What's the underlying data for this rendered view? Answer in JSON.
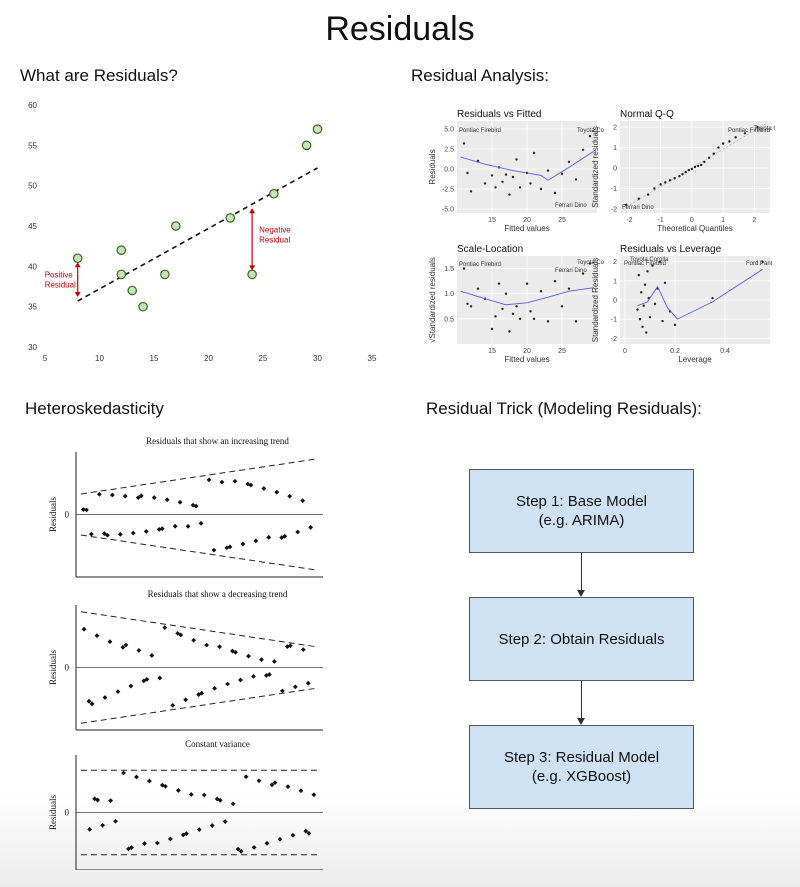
{
  "title": "Residuals",
  "sections": {
    "what_are_residuals": "What are Residuals?",
    "residual_analysis": "Residual Analysis:",
    "heteroskedasticity": "Heteroskedasticity",
    "residual_trick": "Residual Trick (Modeling Residuals):"
  },
  "flowchart": {
    "step1": {
      "line1": "Step 1: Base Model",
      "line2": "(e.g. ARIMA)"
    },
    "step2": {
      "line1": "Step 2: Obtain Residuals"
    },
    "step3": {
      "line1": "Step 3: Residual Model",
      "line2": "(e.g. XGBoost)"
    }
  },
  "chart_data": [
    {
      "id": "residual-scatter",
      "type": "scatter",
      "title": "",
      "xlim": [
        5,
        35
      ],
      "ylim": [
        30,
        60
      ],
      "xticks": [
        5,
        10,
        15,
        20,
        25,
        30,
        35
      ],
      "yticks": [
        30,
        35,
        40,
        45,
        50,
        55,
        60
      ],
      "points": [
        {
          "x": 8,
          "y": 41
        },
        {
          "x": 12,
          "y": 42
        },
        {
          "x": 12,
          "y": 39
        },
        {
          "x": 13,
          "y": 37
        },
        {
          "x": 14,
          "y": 35
        },
        {
          "x": 16,
          "y": 39
        },
        {
          "x": 17,
          "y": 45
        },
        {
          "x": 22,
          "y": 46
        },
        {
          "x": 24,
          "y": 39
        },
        {
          "x": 26,
          "y": 49
        },
        {
          "x": 29,
          "y": 55
        },
        {
          "x": 30,
          "y": 57
        }
      ],
      "fit_line": {
        "x": [
          8,
          30
        ],
        "y": [
          35.7,
          52.2
        ]
      },
      "annotations": [
        {
          "label_line1": "Positive",
          "label_line2": "Residual",
          "x": 8,
          "from_y": 41,
          "to_y": 35.7
        },
        {
          "label_line1": "Negative",
          "label_line2": "Residual",
          "x": 24,
          "from_y": 39,
          "to_y": 47.7
        }
      ],
      "annotation_color": "#cc0000",
      "point_fill": "#c9e4b4",
      "point_stroke": "#2e6b1f"
    },
    {
      "id": "residuals-vs-fitted",
      "type": "scatter",
      "title": "Residuals vs Fitted",
      "xlabel": "Fitted values",
      "ylabel": "Residuals",
      "xlim": [
        10,
        30
      ],
      "ylim": [
        -5.5,
        6
      ],
      "xticks": [
        15,
        20,
        25
      ],
      "yticks": [
        -5.0,
        -2.5,
        0.0,
        2.5,
        5.0
      ],
      "labels": [
        "Pontiac Firebird",
        "Toyota Co",
        "Ferrari Dino"
      ],
      "points": [
        {
          "x": 11,
          "y": 3.2
        },
        {
          "x": 11.5,
          "y": -0.5
        },
        {
          "x": 12,
          "y": -2.8
        },
        {
          "x": 13,
          "y": 1.0
        },
        {
          "x": 14,
          "y": -1.8
        },
        {
          "x": 15,
          "y": -0.8
        },
        {
          "x": 15.5,
          "y": -2.3
        },
        {
          "x": 16,
          "y": 0.2
        },
        {
          "x": 16.5,
          "y": -1.6
        },
        {
          "x": 17,
          "y": -0.7
        },
        {
          "x": 17.5,
          "y": -3.2
        },
        {
          "x": 18,
          "y": -1.0
        },
        {
          "x": 18.5,
          "y": 1.2
        },
        {
          "x": 19,
          "y": -2.3
        },
        {
          "x": 20,
          "y": -0.5
        },
        {
          "x": 20.5,
          "y": -1.8
        },
        {
          "x": 21,
          "y": 2.0
        },
        {
          "x": 22,
          "y": -2.5
        },
        {
          "x": 23,
          "y": -0.2
        },
        {
          "x": 24,
          "y": -3.0
        },
        {
          "x": 25,
          "y": -0.6
        },
        {
          "x": 26,
          "y": 0.9
        },
        {
          "x": 27,
          "y": -1.3
        },
        {
          "x": 28,
          "y": 2.4
        },
        {
          "x": 29,
          "y": 4.1
        }
      ],
      "smooth": {
        "x": [
          10.5,
          14,
          18,
          22,
          23,
          26,
          29.5
        ],
        "y": [
          1.5,
          0.6,
          -0.2,
          -0.8,
          -1.4,
          0.2,
          2.2
        ]
      }
    },
    {
      "id": "normal-qq",
      "type": "scatter",
      "title": "Normal Q-Q",
      "xlabel": "Theoretical Quantiles",
      "ylabel": "Standardized residuals",
      "xlim": [
        -2.3,
        2.5
      ],
      "ylim": [
        -2.2,
        2.3
      ],
      "xticks": [
        -2,
        -1,
        0,
        1,
        2
      ],
      "yticks": [
        -2,
        -1,
        0,
        1,
        2
      ],
      "labels": [
        "Pontiac Firebird",
        "Toyota Co",
        "Ferrari Dino"
      ],
      "points": [
        {
          "x": -2.1,
          "y": -1.8
        },
        {
          "x": -1.7,
          "y": -1.5
        },
        {
          "x": -1.4,
          "y": -1.3
        },
        {
          "x": -1.2,
          "y": -1.0
        },
        {
          "x": -1.0,
          "y": -0.8
        },
        {
          "x": -0.85,
          "y": -0.7
        },
        {
          "x": -0.7,
          "y": -0.6
        },
        {
          "x": -0.55,
          "y": -0.5
        },
        {
          "x": -0.4,
          "y": -0.4
        },
        {
          "x": -0.3,
          "y": -0.3
        },
        {
          "x": -0.2,
          "y": -0.2
        },
        {
          "x": -0.1,
          "y": -0.1
        },
        {
          "x": 0.0,
          "y": -0.05
        },
        {
          "x": 0.1,
          "y": 0.05
        },
        {
          "x": 0.2,
          "y": 0.1
        },
        {
          "x": 0.3,
          "y": 0.15
        },
        {
          "x": 0.4,
          "y": 0.3
        },
        {
          "x": 0.55,
          "y": 0.5
        },
        {
          "x": 0.7,
          "y": 0.7
        },
        {
          "x": 0.85,
          "y": 1.0
        },
        {
          "x": 1.0,
          "y": 1.2
        },
        {
          "x": 1.2,
          "y": 1.3
        },
        {
          "x": 1.4,
          "y": 1.5
        },
        {
          "x": 1.7,
          "y": 1.7
        },
        {
          "x": 2.1,
          "y": 2.0
        }
      ]
    },
    {
      "id": "scale-location",
      "type": "scatter",
      "title": "Scale-Location",
      "xlabel": "Fitted values",
      "ylabel": "√Standardized residuals",
      "xlim": [
        10,
        30
      ],
      "ylim": [
        0,
        1.75
      ],
      "xticks": [
        15,
        20,
        25
      ],
      "yticks": [
        0.5,
        1.0,
        1.5
      ],
      "labels": [
        "Pontiac Firebird",
        "Toyota Co",
        "Ferrari Dino"
      ],
      "points": [
        {
          "x": 11,
          "y": 1.5
        },
        {
          "x": 11.5,
          "y": 0.8
        },
        {
          "x": 12,
          "y": 0.75
        },
        {
          "x": 13,
          "y": 1.1
        },
        {
          "x": 14,
          "y": 0.9
        },
        {
          "x": 15,
          "y": 0.3
        },
        {
          "x": 15.5,
          "y": 0.55
        },
        {
          "x": 16,
          "y": 1.2
        },
        {
          "x": 16.5,
          "y": 0.7
        },
        {
          "x": 17,
          "y": 1.0
        },
        {
          "x": 17.5,
          "y": 0.25
        },
        {
          "x": 18,
          "y": 0.6
        },
        {
          "x": 18.5,
          "y": 0.75
        },
        {
          "x": 19,
          "y": 0.5
        },
        {
          "x": 20,
          "y": 1.2
        },
        {
          "x": 20.5,
          "y": 0.65
        },
        {
          "x": 21,
          "y": 0.5
        },
        {
          "x": 22,
          "y": 1.05
        },
        {
          "x": 23,
          "y": 0.45
        },
        {
          "x": 24,
          "y": 1.25
        },
        {
          "x": 25,
          "y": 0.75
        },
        {
          "x": 26,
          "y": 1.1
        },
        {
          "x": 27,
          "y": 0.45
        },
        {
          "x": 28,
          "y": 1.4
        },
        {
          "x": 29,
          "y": 1.6
        }
      ],
      "smooth": {
        "x": [
          10.5,
          14,
          17,
          20,
          23,
          26,
          29.5
        ],
        "y": [
          1.05,
          0.9,
          0.78,
          0.82,
          0.93,
          1.05,
          1.12
        ]
      }
    },
    {
      "id": "residuals-vs-leverage",
      "type": "scatter",
      "title": "Residuals vs Leverage",
      "xlabel": "Leverage",
      "ylabel": "Standardized Residuals",
      "xlim": [
        -0.02,
        0.58
      ],
      "ylim": [
        -2.3,
        2.3
      ],
      "xticks": [
        0.0,
        0.2,
        0.4
      ],
      "yticks": [
        -2,
        -1,
        0,
        1,
        2
      ],
      "labels": [
        "Pontiac Firebird",
        "Toyota Corolla",
        "Ford Pant"
      ],
      "points": [
        {
          "x": 0.05,
          "y": -0.5
        },
        {
          "x": 0.055,
          "y": 1.3
        },
        {
          "x": 0.06,
          "y": -1.0
        },
        {
          "x": 0.065,
          "y": 0.4
        },
        {
          "x": 0.07,
          "y": -1.4
        },
        {
          "x": 0.075,
          "y": -0.3
        },
        {
          "x": 0.08,
          "y": 0.8
        },
        {
          "x": 0.085,
          "y": -1.7
        },
        {
          "x": 0.09,
          "y": 1.5
        },
        {
          "x": 0.095,
          "y": 0.1
        },
        {
          "x": 0.1,
          "y": -0.9
        },
        {
          "x": 0.11,
          "y": 1.8
        },
        {
          "x": 0.12,
          "y": -0.2
        },
        {
          "x": 0.13,
          "y": 0.6
        },
        {
          "x": 0.14,
          "y": 2.0
        },
        {
          "x": 0.15,
          "y": -1.1
        },
        {
          "x": 0.16,
          "y": 0.9
        },
        {
          "x": 0.18,
          "y": -0.6
        },
        {
          "x": 0.2,
          "y": -1.3
        },
        {
          "x": 0.35,
          "y": 0.1
        },
        {
          "x": 0.55,
          "y": 2.0
        }
      ],
      "smooth": {
        "x": [
          0.05,
          0.09,
          0.13,
          0.17,
          0.21,
          0.35,
          0.55
        ],
        "y": [
          -0.3,
          -0.1,
          0.7,
          -0.4,
          -1.0,
          -0.1,
          1.6
        ]
      }
    },
    {
      "id": "hetero-increasing",
      "type": "scatter",
      "title": "Residuals that show an increasing trend",
      "ylabel": "Residuals",
      "xlim": [
        0,
        1
      ],
      "ylim": [
        -1,
        1
      ],
      "zero_label": "0",
      "pattern": "increasing"
    },
    {
      "id": "hetero-decreasing",
      "type": "scatter",
      "title": "Residuals that show a decreasing trend",
      "ylabel": "Residuals",
      "xlim": [
        0,
        1
      ],
      "ylim": [
        -1,
        1
      ],
      "zero_label": "0",
      "pattern": "decreasing"
    },
    {
      "id": "hetero-constant",
      "type": "scatter",
      "title": "Constant variance",
      "ylabel": "Residuals",
      "xlim": [
        0,
        1
      ],
      "ylim": [
        -1,
        1
      ],
      "zero_label": "0",
      "pattern": "constant"
    }
  ]
}
